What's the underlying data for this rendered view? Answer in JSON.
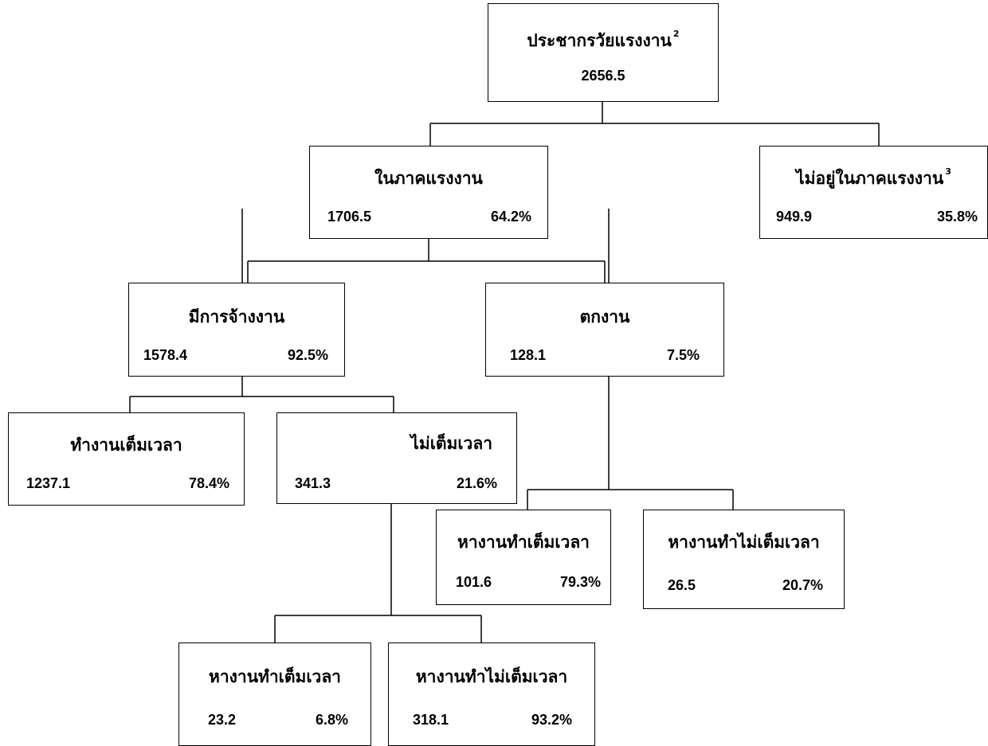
{
  "nodes": {
    "working_age": {
      "label": "ประชากรวัยแรงงาน",
      "sup": "2",
      "value": "2656.5"
    },
    "in_labor_force": {
      "label": "ในภาคแรงงาน",
      "value": "1706.5",
      "percent": "64.2%"
    },
    "not_in_labor_force": {
      "label": "ไม่อยู่ในภาคแรงงาน",
      "sup": "3",
      "value": "949.9",
      "percent": "35.8%"
    },
    "employed": {
      "label": "มีการจ้างงาน",
      "value": "1578.4",
      "percent": "92.5%"
    },
    "unemployed": {
      "label": "ตกงาน",
      "value": "128.1",
      "percent": "7.5%"
    },
    "full_time": {
      "label": "ทำงานเต็มเวลา",
      "value": "1237.1",
      "percent": "78.4%"
    },
    "part_time": {
      "label": "ไม่เต็มเวลา",
      "value": "341.3",
      "percent": "21.6%"
    },
    "unemp_seek_full": {
      "label": "หางานทำเต็มเวลา",
      "value": "101.6",
      "percent": "79.3%"
    },
    "unemp_seek_part": {
      "label": "หางานทำไม่เต็มเวลา",
      "value": "26.5",
      "percent": "20.7%"
    },
    "pt_seek_full": {
      "label": "หางานทำเต็มเวลา",
      "value": "23.2",
      "percent": "6.8%"
    },
    "pt_seek_part": {
      "label": "หางานทำไม่เต็มเวลา",
      "value": "318.1",
      "percent": "93.2%"
    }
  }
}
